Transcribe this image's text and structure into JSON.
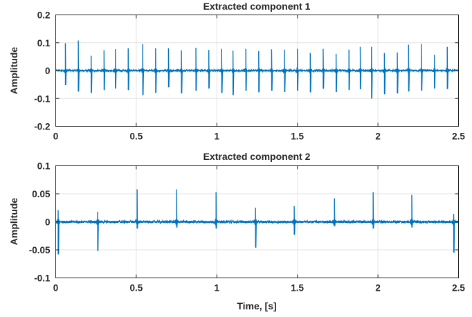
{
  "chart_data": [
    {
      "type": "line",
      "title": "Extracted component 1",
      "xlabel": "",
      "ylabel": "Amplitude",
      "xlim": [
        0,
        2.5
      ],
      "ylim": [
        -0.2,
        0.2
      ],
      "xticks": [
        "0",
        "0.5",
        "1",
        "1.5",
        "2",
        "2.5"
      ],
      "yticks": [
        "0.2",
        "0.1",
        "0",
        "-0.1",
        "-0.2"
      ],
      "grid": true,
      "noise_amplitude": 0.003,
      "series": [
        {
          "color": "#0072bd",
          "spikes": [
            {
              "t": 0.06,
              "up": 0.098,
              "down": -0.052
            },
            {
              "t": 0.14,
              "up": 0.108,
              "down": -0.075
            },
            {
              "t": 0.22,
              "up": 0.053,
              "down": -0.08
            },
            {
              "t": 0.3,
              "up": 0.073,
              "down": -0.07
            },
            {
              "t": 0.37,
              "up": 0.077,
              "down": -0.064
            },
            {
              "t": 0.45,
              "up": 0.08,
              "down": -0.07
            },
            {
              "t": 0.54,
              "up": 0.095,
              "down": -0.088
            },
            {
              "t": 0.62,
              "up": 0.08,
              "down": -0.08
            },
            {
              "t": 0.7,
              "up": 0.08,
              "down": -0.06
            },
            {
              "t": 0.78,
              "up": 0.073,
              "down": -0.082
            },
            {
              "t": 0.87,
              "up": 0.082,
              "down": -0.072
            },
            {
              "t": 0.95,
              "up": 0.074,
              "down": -0.064
            },
            {
              "t": 1.03,
              "up": 0.078,
              "down": -0.08
            },
            {
              "t": 1.1,
              "up": 0.072,
              "down": -0.088
            },
            {
              "t": 1.18,
              "up": 0.078,
              "down": -0.072
            },
            {
              "t": 1.26,
              "up": 0.07,
              "down": -0.078
            },
            {
              "t": 1.34,
              "up": 0.076,
              "down": -0.072
            },
            {
              "t": 1.42,
              "up": 0.075,
              "down": -0.077
            },
            {
              "t": 1.5,
              "up": 0.078,
              "down": -0.072
            },
            {
              "t": 1.58,
              "up": 0.063,
              "down": -0.078
            },
            {
              "t": 1.66,
              "up": 0.078,
              "down": -0.065
            },
            {
              "t": 1.74,
              "up": 0.06,
              "down": -0.077
            },
            {
              "t": 1.82,
              "up": 0.075,
              "down": -0.07
            },
            {
              "t": 1.89,
              "up": 0.085,
              "down": -0.067
            },
            {
              "t": 1.96,
              "up": 0.085,
              "down": -0.1
            },
            {
              "t": 2.04,
              "up": 0.063,
              "down": -0.085
            },
            {
              "t": 2.12,
              "up": 0.065,
              "down": -0.082
            },
            {
              "t": 2.19,
              "up": 0.093,
              "down": -0.075
            },
            {
              "t": 2.27,
              "up": 0.095,
              "down": -0.072
            },
            {
              "t": 2.35,
              "up": 0.057,
              "down": -0.064
            },
            {
              "t": 2.43,
              "up": 0.085,
              "down": -0.066
            }
          ]
        }
      ]
    },
    {
      "type": "line",
      "title": "Extracted component 2",
      "xlabel": "Time, [s]",
      "ylabel": "Amplitude",
      "xlim": [
        0,
        2.5
      ],
      "ylim": [
        -0.1,
        0.1
      ],
      "xticks": [
        "0",
        "0.5",
        "1",
        "1.5",
        "2",
        "2.5"
      ],
      "yticks": [
        "0.1",
        "0.05",
        "0",
        "-0.05",
        "-0.1"
      ],
      "grid": true,
      "noise_amplitude": 0.002,
      "series": [
        {
          "color": "#0072bd",
          "spikes": [
            {
              "t": 0.015,
              "up": 0.021,
              "down": -0.058
            },
            {
              "t": 0.26,
              "up": 0.018,
              "down": -0.052
            },
            {
              "t": 0.505,
              "up": 0.058,
              "down": -0.012
            },
            {
              "t": 0.75,
              "up": 0.058,
              "down": -0.01
            },
            {
              "t": 0.995,
              "up": 0.053,
              "down": -0.012
            },
            {
              "t": 1.24,
              "up": 0.025,
              "down": -0.046
            },
            {
              "t": 1.48,
              "up": 0.028,
              "down": -0.023
            },
            {
              "t": 1.73,
              "up": 0.042,
              "down": -0.008
            },
            {
              "t": 1.97,
              "up": 0.053,
              "down": -0.012
            },
            {
              "t": 2.21,
              "up": 0.048,
              "down": -0.01
            },
            {
              "t": 2.47,
              "up": 0.014,
              "down": -0.055
            }
          ]
        }
      ]
    }
  ]
}
